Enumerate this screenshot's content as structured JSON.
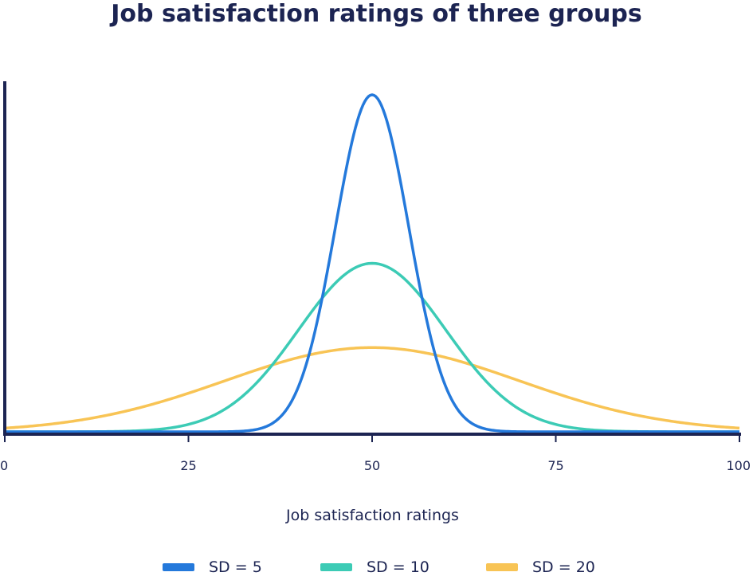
{
  "chart_data": {
    "type": "line",
    "title": "Job satisfaction ratings of three groups",
    "xlabel": "Job satisfaction ratings",
    "ylabel": "",
    "xlim": [
      0,
      100
    ],
    "xticks": [
      0,
      25,
      50,
      75,
      100
    ],
    "xtick_labels": [
      "0",
      "25",
      "50",
      "75",
      "100"
    ],
    "grid": false,
    "legend_position": "bottom",
    "series": [
      {
        "name": "SD = 5",
        "mean": 50,
        "sd": 5,
        "color": "#2479db"
      },
      {
        "name": "SD = 10",
        "mean": 50,
        "sd": 10,
        "color": "#3ccbb5"
      },
      {
        "name": "SD = 20",
        "mean": 50,
        "sd": 20,
        "color": "#f8c455"
      }
    ]
  },
  "colors": {
    "axis": "#1c2452",
    "text": "#1c2452"
  }
}
